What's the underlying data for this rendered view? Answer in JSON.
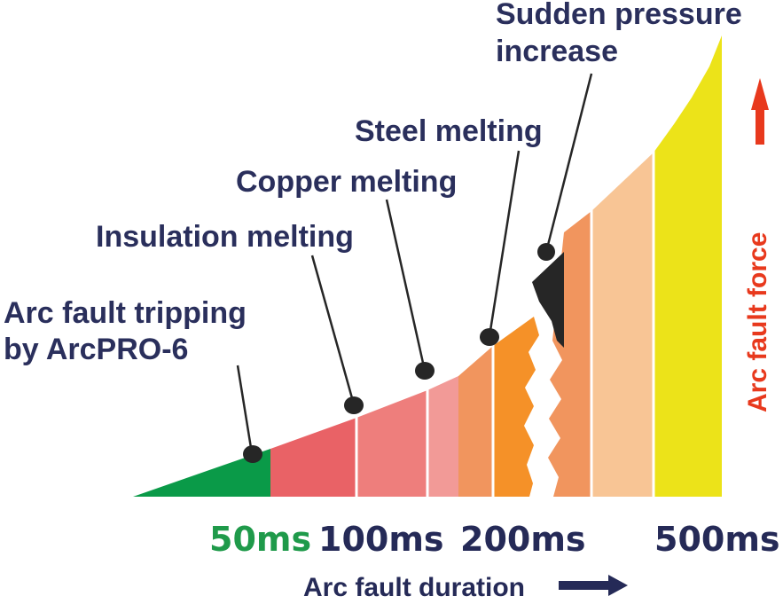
{
  "annotations": {
    "arc_fault_tripping_line1": "Arc fault tripping",
    "arc_fault_tripping_line2": "by ArcPRO-6",
    "insulation_melting": "Insulation melting",
    "copper_melting": "Copper melting",
    "steel_melting": "Steel melting",
    "sudden_pressure_line1": "Sudden pressure",
    "sudden_pressure_line2": "increase"
  },
  "ticks": {
    "t50": "50ms",
    "t100": "100ms",
    "t200": "200ms",
    "t500": "500ms"
  },
  "axes": {
    "x_label": "Arc fault duration",
    "y_label": "Arc fault force"
  },
  "colors": {
    "green": "#0a9a48",
    "red": "#e96266",
    "salmon": "#ee7e7c",
    "pink": "#f29a97",
    "orange_light": "#f1955e",
    "orange": "#f59128",
    "peach": "#f8c595",
    "yellow": "#ece319",
    "marker": "#262626",
    "arrow_red": "#e8391d",
    "arrow_navy": "#252a57"
  },
  "icons": {
    "up_arrow": "up-arrow-icon",
    "right_arrow": "right-arrow-icon"
  }
}
